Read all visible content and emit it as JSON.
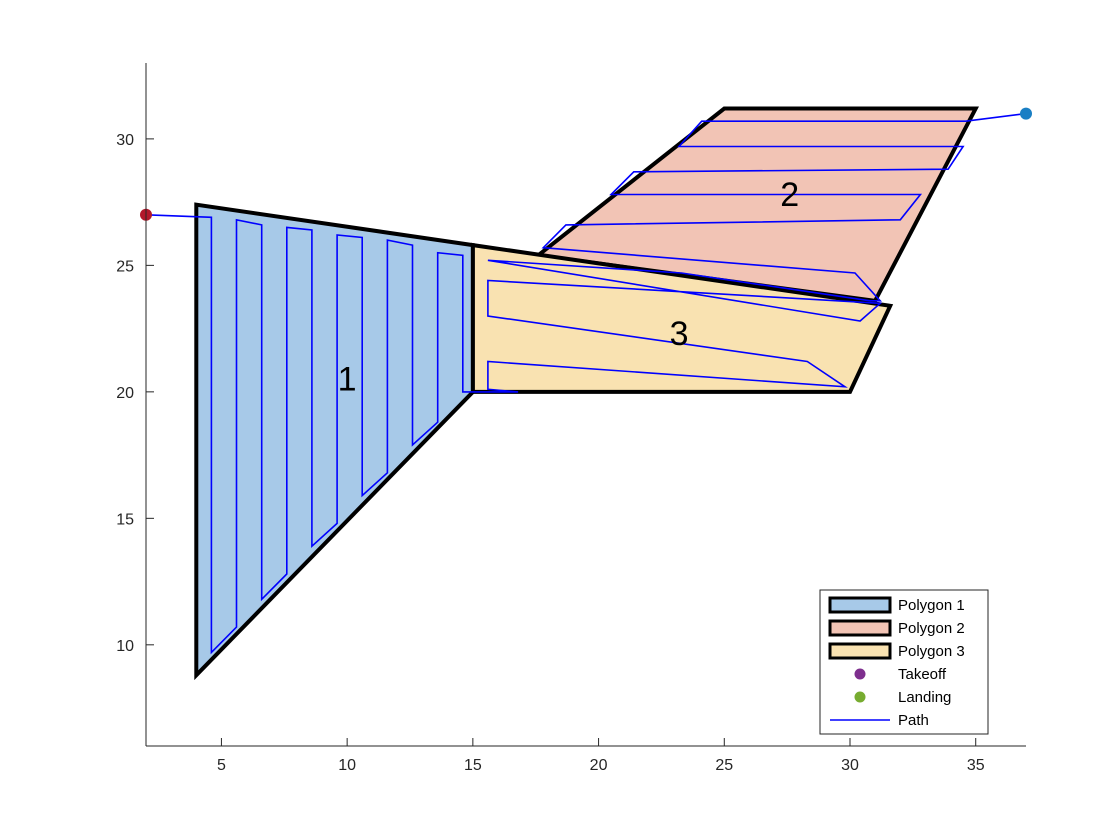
{
  "chart_data": {
    "type": "area",
    "title": "",
    "xlabel": "",
    "ylabel": "",
    "xlim": [
      2,
      37
    ],
    "ylim": [
      6,
      33
    ],
    "xticks": [
      5,
      10,
      15,
      20,
      25,
      30,
      35
    ],
    "yticks": [
      10,
      15,
      20,
      25,
      30
    ],
    "grid": false,
    "legend_position": "bottom-right",
    "polygons": [
      {
        "name": "Polygon 1",
        "label": "1",
        "label_at": [
          10,
          20.4
        ],
        "color": "#a7c9e8",
        "vertices": [
          [
            4,
            8.8
          ],
          [
            4,
            27.4
          ],
          [
            15,
            25.8
          ],
          [
            15,
            20
          ]
        ]
      },
      {
        "name": "Polygon 2",
        "label": "2",
        "label_at": [
          27.6,
          27.7
        ],
        "color": "#f2c4b5",
        "vertices": [
          [
            17.6,
            25.4
          ],
          [
            25,
            31.2
          ],
          [
            35,
            31.2
          ],
          [
            31,
            23.6
          ]
        ]
      },
      {
        "name": "Polygon 3",
        "label": "3",
        "label_at": [
          23.2,
          22.2
        ],
        "color": "#f9e2b1",
        "vertices": [
          [
            15,
            20
          ],
          [
            15,
            25.8
          ],
          [
            31.6,
            23.4
          ],
          [
            30,
            20
          ]
        ]
      }
    ],
    "takeoff": {
      "name": "Takeoff",
      "point": [
        2,
        27
      ],
      "color": "#7e2f8e"
    },
    "landing": {
      "name": "Landing",
      "point": [
        37,
        31
      ],
      "color": "#77ac30"
    },
    "takeoff_marker_color": "#b2182b",
    "landing_marker_color": "#1a7fc4",
    "path": {
      "name": "Path",
      "color": "#0000ff",
      "points": [
        [
          2,
          27
        ],
        [
          4.6,
          26.9
        ],
        [
          4.6,
          9.7
        ],
        [
          5.6,
          10.7
        ],
        [
          5.6,
          26.8
        ],
        [
          6.6,
          26.6
        ],
        [
          6.6,
          11.8
        ],
        [
          7.6,
          12.8
        ],
        [
          7.6,
          26.5
        ],
        [
          8.6,
          26.4
        ],
        [
          8.6,
          13.9
        ],
        [
          9.6,
          14.8
        ],
        [
          9.6,
          26.2
        ],
        [
          10.6,
          26.1
        ],
        [
          10.6,
          15.9
        ],
        [
          11.6,
          16.8
        ],
        [
          11.6,
          26.0
        ],
        [
          12.6,
          25.8
        ],
        [
          12.6,
          17.9
        ],
        [
          13.6,
          18.8
        ],
        [
          13.6,
          25.5
        ],
        [
          14.6,
          25.4
        ],
        [
          14.6,
          20
        ],
        [
          16.8,
          20
        ],
        [
          15.6,
          20.1
        ],
        [
          15.6,
          21.2
        ],
        [
          29.8,
          20.2
        ],
        [
          28.3,
          21.2
        ],
        [
          15.6,
          23.0
        ],
        [
          15.6,
          24.4
        ],
        [
          31.2,
          23.5
        ],
        [
          30.4,
          22.8
        ],
        [
          15.6,
          25.2
        ],
        [
          23.3,
          24.7
        ],
        [
          30.8,
          23.6
        ],
        [
          31.2,
          23.6
        ],
        [
          30.2,
          24.7
        ],
        [
          17.8,
          25.7
        ],
        [
          18.7,
          26.6
        ],
        [
          32.0,
          26.8
        ],
        [
          32.8,
          27.8
        ],
        [
          20.5,
          27.8
        ],
        [
          21.4,
          28.7
        ],
        [
          33.9,
          28.8
        ],
        [
          34.5,
          29.7
        ],
        [
          23.2,
          29.7
        ],
        [
          24.1,
          30.7
        ],
        [
          34.6,
          30.7
        ],
        [
          37,
          31
        ]
      ]
    }
  }
}
